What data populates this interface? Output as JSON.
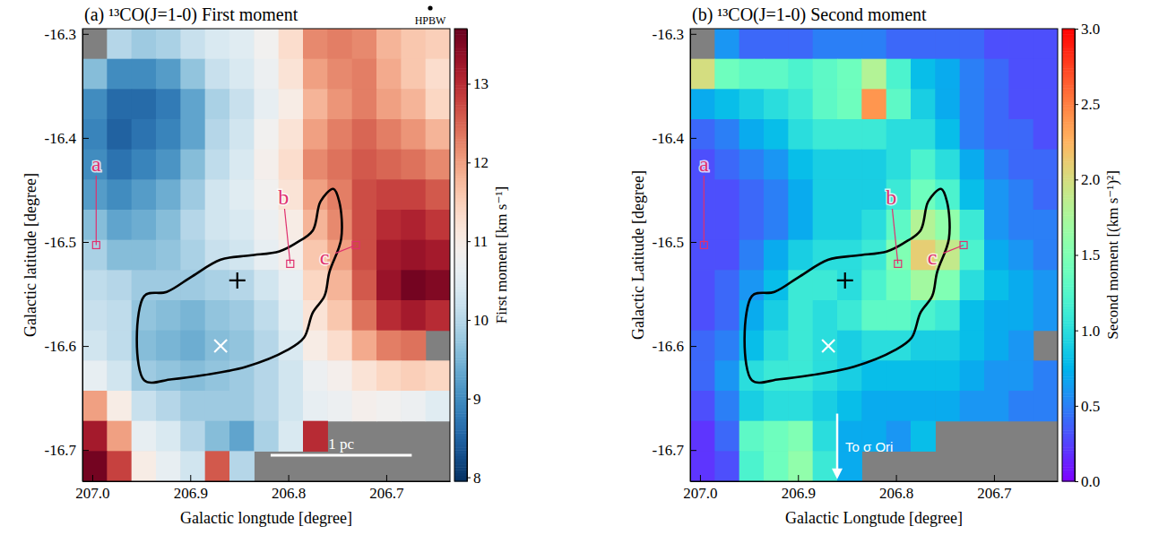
{
  "chart_data": [
    {
      "type": "heatmap",
      "title": "(a) ¹³CO(J=1-0) First moment",
      "x_label": "Galactic longtude [degree]",
      "y_label": "Galactic latitude [degree]",
      "xlim": [
        207.01,
        206.635
      ],
      "ylim": [
        -16.73,
        -16.295
      ],
      "xticks": [
        {
          "value": 207,
          "label": "207.0"
        },
        206.9,
        206.8,
        206.7
      ],
      "yticks": [
        -16.3,
        -16.4,
        -16.5,
        -16.6,
        -16.7
      ],
      "x": [
        206.9975,
        206.9725,
        206.9475,
        206.9225,
        206.8975,
        206.8725,
        206.8475,
        206.8225,
        206.7975,
        206.7725,
        206.7475,
        206.7225,
        206.6975,
        206.6725,
        206.6475
      ],
      "y": [
        -16.3095,
        -16.3385,
        -16.3675,
        -16.3965,
        -16.4255,
        -16.4545,
        -16.4835,
        -16.5125,
        -16.5415,
        -16.5705,
        -16.5995,
        -16.6285,
        -16.6575,
        -16.6865,
        -16.7155
      ],
      "values": [
        [
          null,
          10.0,
          9.8,
          9.9,
          10.2,
          10.4,
          10.5,
          10.8,
          11.3,
          12.2,
          12.3,
          12.2,
          11.8,
          11.6,
          11.5
        ],
        [
          9.6,
          9.0,
          9.0,
          9.2,
          9.7,
          10.2,
          10.4,
          10.7,
          11.2,
          12.0,
          12.2,
          12.3,
          11.9,
          11.6,
          11.3
        ],
        [
          9.0,
          8.6,
          8.6,
          8.8,
          9.3,
          9.9,
          10.2,
          10.6,
          11.0,
          11.8,
          12.1,
          12.3,
          12.0,
          11.8,
          11.4
        ],
        [
          8.9,
          8.5,
          8.7,
          8.9,
          9.3,
          10.0,
          10.3,
          10.8,
          11.2,
          12.0,
          12.3,
          12.5,
          12.3,
          12.1,
          11.8
        ],
        [
          9.0,
          8.7,
          8.9,
          9.1,
          9.6,
          10.1,
          10.4,
          10.9,
          11.3,
          12.2,
          12.4,
          12.6,
          12.5,
          12.4,
          12.2
        ],
        [
          9.2,
          9.0,
          9.2,
          9.4,
          9.8,
          10.3,
          10.5,
          10.8,
          11.2,
          12.0,
          12.3,
          12.7,
          12.8,
          12.8,
          12.6
        ],
        [
          9.6,
          9.3,
          9.4,
          9.6,
          10.0,
          10.3,
          10.4,
          10.7,
          11.0,
          11.8,
          12.2,
          12.7,
          13.0,
          13.1,
          12.9
        ],
        [
          9.9,
          9.6,
          9.6,
          9.7,
          9.9,
          10.2,
          10.3,
          10.6,
          10.9,
          11.6,
          12.0,
          12.7,
          13.2,
          13.3,
          13.2
        ],
        [
          10.1,
          10.0,
          9.8,
          9.8,
          9.8,
          9.9,
          10.0,
          10.3,
          10.6,
          11.4,
          11.8,
          12.6,
          13.3,
          13.6,
          13.5
        ],
        [
          10.2,
          10.1,
          9.7,
          9.6,
          9.5,
          9.7,
          9.8,
          10.1,
          10.5,
          11.2,
          11.6,
          12.4,
          13.0,
          13.2,
          13.0
        ],
        [
          10.3,
          10.1,
          9.6,
          9.5,
          9.4,
          9.6,
          9.7,
          10.0,
          10.4,
          11.0,
          11.3,
          11.9,
          12.3,
          12.4,
          null
        ],
        [
          10.6,
          10.3,
          9.8,
          9.7,
          9.6,
          9.7,
          9.8,
          10.0,
          10.3,
          10.7,
          10.9,
          11.2,
          11.4,
          11.5,
          11.4
        ],
        [
          12.0,
          11.0,
          10.2,
          10.0,
          9.8,
          9.8,
          9.8,
          10.0,
          10.3,
          10.6,
          10.7,
          10.9,
          10.8,
          10.7,
          10.5
        ],
        [
          13.2,
          12.0,
          10.6,
          10.4,
          10.0,
          9.6,
          9.3,
          9.9,
          10.4,
          13.0,
          null,
          null,
          null,
          null,
          null
        ],
        [
          13.6,
          12.8,
          11.0,
          10.6,
          10.3,
          12.6,
          10.0,
          null,
          null,
          null,
          null,
          null,
          null,
          null,
          null
        ]
      ],
      "colorbar": {
        "label": "First moment [km s⁻¹]",
        "range": [
          7.95,
          13.7
        ],
        "ticks": [
          8,
          9,
          10,
          11,
          12,
          13
        ]
      },
      "outline": {
        "x": [
          206.947,
          206.947,
          206.924,
          206.898,
          206.869,
          206.839,
          206.809,
          206.792,
          206.775,
          206.767,
          206.754,
          206.748,
          206.746,
          206.758,
          206.763,
          206.775,
          206.784,
          206.801,
          206.843,
          206.886,
          206.919
        ],
        "y": [
          -16.633,
          -16.552,
          -16.548,
          -16.533,
          -16.517,
          -16.513,
          -16.509,
          -16.501,
          -16.489,
          -16.461,
          -16.449,
          -16.461,
          -16.497,
          -16.529,
          -16.552,
          -16.568,
          -16.592,
          -16.604,
          -16.62,
          -16.628,
          -16.632
        ]
      },
      "markers": [
        {
          "marker": "plus",
          "color": "#000000",
          "x": 206.852,
          "y": -16.537
        },
        {
          "marker": "cross",
          "color": "#ffffff",
          "x": 206.869,
          "y": -16.6
        }
      ],
      "labels": [
        {
          "text": "a",
          "x": 206.996,
          "y": -16.425,
          "x2": 206.996,
          "y2": -16.503
        },
        {
          "text": "b",
          "x": 206.805,
          "y": -16.457,
          "x2": 206.798,
          "y2": -16.521
        },
        {
          "text": "c",
          "x": 206.763,
          "y": -16.515,
          "x2": 206.731,
          "y2": -16.503
        }
      ],
      "beam_label": "HPBW",
      "scale_bar": {
        "label": "1 pc",
        "length": 0.144,
        "x": 206.818,
        "y": -16.705
      }
    },
    {
      "type": "heatmap",
      "title": "(b) ¹³CO(J=1-0) Second moment",
      "x_label": "Galactic Longtude [degree]",
      "y_label": "Galactic Latitude [degree]",
      "xlim": [
        207.01,
        206.635
      ],
      "ylim": [
        -16.73,
        -16.295
      ],
      "xticks": [
        {
          "value": 207,
          "label": "207.0"
        },
        206.9,
        206.8,
        206.7
      ],
      "yticks": [
        -16.3,
        -16.4,
        -16.5,
        -16.6,
        -16.7
      ],
      "x": [
        206.9975,
        206.9725,
        206.9475,
        206.9225,
        206.8975,
        206.8725,
        206.8475,
        206.8225,
        206.7975,
        206.7725,
        206.7475,
        206.7225,
        206.6975,
        206.6725,
        206.6475
      ],
      "y": [
        -16.3095,
        -16.3385,
        -16.3675,
        -16.3965,
        -16.4255,
        -16.4545,
        -16.4835,
        -16.5125,
        -16.5415,
        -16.5705,
        -16.5995,
        -16.6285,
        -16.6575,
        -16.6865,
        -16.7155
      ],
      "values": [
        [
          null,
          0.6,
          0.4,
          0.4,
          0.4,
          0.5,
          0.5,
          0.5,
          0.4,
          0.4,
          0.4,
          0.4,
          0.3,
          0.3,
          0.3
        ],
        [
          2.0,
          1.4,
          1.3,
          1.3,
          1.2,
          1.3,
          1.4,
          1.8,
          1.2,
          0.8,
          0.7,
          0.5,
          0.4,
          0.3,
          0.3
        ],
        [
          0.7,
          0.8,
          0.9,
          1.0,
          1.1,
          1.3,
          1.4,
          2.4,
          1.3,
          0.9,
          0.7,
          0.5,
          0.4,
          0.3,
          0.3
        ],
        [
          0.4,
          0.5,
          0.7,
          0.8,
          1.0,
          1.1,
          1.1,
          1.1,
          1.0,
          1.0,
          0.8,
          0.5,
          0.4,
          0.4,
          0.3
        ],
        [
          0.3,
          0.4,
          0.5,
          0.6,
          0.8,
          0.9,
          0.9,
          0.9,
          1.0,
          1.2,
          1.0,
          0.7,
          0.5,
          0.4,
          0.4
        ],
        [
          0.3,
          0.3,
          0.4,
          0.5,
          0.7,
          0.9,
          0.9,
          0.9,
          1.1,
          1.4,
          1.2,
          0.8,
          0.6,
          0.5,
          0.4
        ],
        [
          0.3,
          0.3,
          0.4,
          0.5,
          0.7,
          0.9,
          0.9,
          1.0,
          1.3,
          1.8,
          1.6,
          1.1,
          0.6,
          0.5,
          0.5
        ],
        [
          0.3,
          0.3,
          0.5,
          0.7,
          0.9,
          1.0,
          1.0,
          1.1,
          1.5,
          2.1,
          1.9,
          1.2,
          0.7,
          0.6,
          0.5
        ],
        [
          0.3,
          0.4,
          0.6,
          0.8,
          1.1,
          1.1,
          1.0,
          1.2,
          1.4,
          1.7,
          1.5,
          1.0,
          0.8,
          0.7,
          0.6
        ],
        [
          0.3,
          0.4,
          0.7,
          0.9,
          1.1,
          1.0,
          1.1,
          1.3,
          1.3,
          1.2,
          1.1,
          0.8,
          0.7,
          0.7,
          0.6
        ],
        [
          0.4,
          0.5,
          0.8,
          1.0,
          1.1,
          1.0,
          0.9,
          1.0,
          1.0,
          0.9,
          0.9,
          0.8,
          0.7,
          0.6,
          null
        ],
        [
          0.4,
          0.6,
          1.0,
          1.1,
          1.1,
          1.0,
          0.9,
          0.8,
          0.8,
          0.8,
          0.8,
          0.7,
          0.6,
          0.6,
          0.5
        ],
        [
          0.3,
          0.5,
          0.9,
          1.0,
          1.0,
          0.9,
          0.8,
          0.7,
          0.7,
          0.7,
          0.7,
          0.6,
          0.6,
          0.5,
          0.5
        ],
        [
          0.2,
          0.4,
          1.3,
          1.4,
          1.5,
          1.0,
          0.7,
          0.7,
          0.6,
          0.8,
          null,
          null,
          null,
          null,
          null
        ],
        [
          0.2,
          0.3,
          1.2,
          1.4,
          1.6,
          1.1,
          0.7,
          null,
          null,
          null,
          null,
          null,
          null,
          null,
          null
        ]
      ],
      "colorbar": {
        "label": "Second moment [(km s⁻¹)²]",
        "range": [
          0,
          3
        ],
        "ticks": [
          {
            "value": 0,
            "label": "0.0"
          },
          0.5,
          {
            "value": 1,
            "label": "1.0"
          },
          1.5,
          {
            "value": 2,
            "label": "2.0"
          },
          2.5,
          {
            "value": 3,
            "label": "3.0"
          }
        ]
      },
      "outline": {
        "x": [
          206.947,
          206.947,
          206.924,
          206.898,
          206.869,
          206.839,
          206.809,
          206.792,
          206.775,
          206.767,
          206.754,
          206.748,
          206.746,
          206.758,
          206.763,
          206.775,
          206.784,
          206.801,
          206.843,
          206.886,
          206.919
        ],
        "y": [
          -16.633,
          -16.552,
          -16.548,
          -16.533,
          -16.517,
          -16.513,
          -16.509,
          -16.501,
          -16.489,
          -16.461,
          -16.449,
          -16.461,
          -16.497,
          -16.529,
          -16.552,
          -16.568,
          -16.592,
          -16.604,
          -16.62,
          -16.628,
          -16.632
        ]
      },
      "markers": [
        {
          "marker": "plus",
          "color": "#000000",
          "x": 206.852,
          "y": -16.537
        },
        {
          "marker": "cross",
          "color": "#ffffff",
          "x": 206.869,
          "y": -16.6
        }
      ],
      "labels": [
        {
          "text": "a",
          "x": 206.996,
          "y": -16.425,
          "x2": 206.996,
          "y2": -16.503
        },
        {
          "text": "b",
          "x": 206.805,
          "y": -16.457,
          "x2": 206.798,
          "y2": -16.521
        },
        {
          "text": "c",
          "x": 206.763,
          "y": -16.515,
          "x2": 206.731,
          "y2": -16.503
        }
      ],
      "arrow": {
        "text": "To σ Ori",
        "x": 206.86,
        "y": [
          -16.665,
          -16.728
        ]
      }
    }
  ]
}
